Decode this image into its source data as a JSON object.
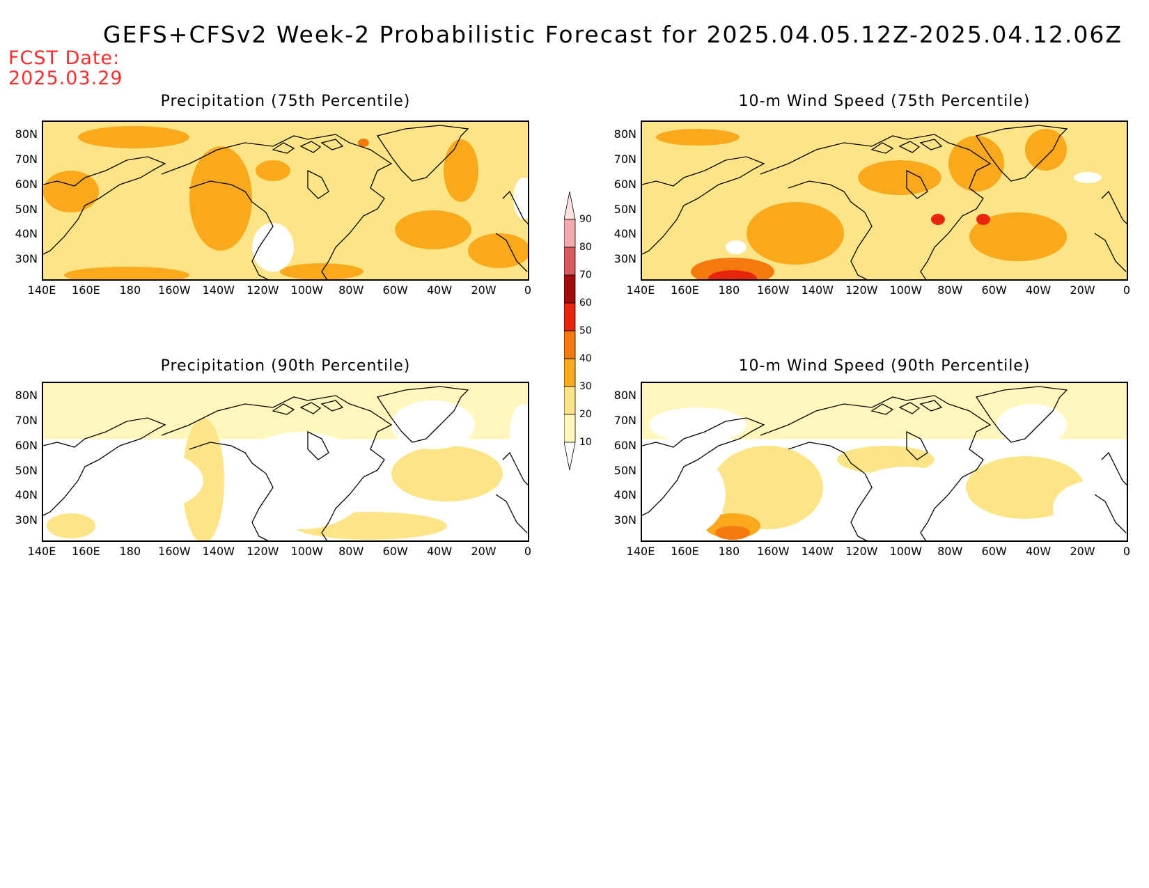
{
  "title": "GEFS+CFSv2 Week-2 Probabilistic Forecast for 2025.04.05.12Z-2025.04.12.06Z",
  "fcst_date_label": "FCST Date:",
  "fcst_date_value": "2025.03.29",
  "panels": [
    {
      "title": "Precipitation (75th Percentile)",
      "intensity": "high"
    },
    {
      "title": "10-m Wind Speed (75th Percentile)",
      "intensity": "high"
    },
    {
      "title": "Precipitation (90th Percentile)",
      "intensity": "low"
    },
    {
      "title": "10-m Wind Speed (90th Percentile)",
      "intensity": "low"
    }
  ],
  "lat_labels": [
    "80N",
    "70N",
    "60N",
    "50N",
    "40N",
    "30N"
  ],
  "lon_labels": [
    "140E",
    "160E",
    "180",
    "160W",
    "140W",
    "120W",
    "100W",
    "80W",
    "60W",
    "40W",
    "20W",
    "0"
  ],
  "colorbar": {
    "levels": [
      "10",
      "20",
      "30",
      "40",
      "50",
      "60",
      "70",
      "80",
      "90"
    ],
    "colors": [
      "#fff7bb",
      "#fde587",
      "#f9a91b",
      "#f47a0f",
      "#e8250e",
      "#a40b0b",
      "#d95a5f",
      "#f2a9ad",
      "#fde0e2"
    ]
  }
}
